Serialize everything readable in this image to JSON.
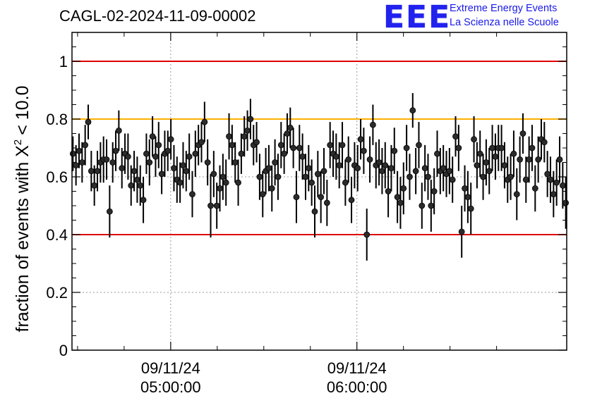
{
  "header": {
    "title": "CAGL-02-2024-11-09-00002",
    "logo_mark": "EEE",
    "logo_line1": "Extreme Energy Events",
    "logo_line2": "La Scienza nelle Scuole"
  },
  "chart_data": {
    "type": "scatter",
    "title": "CAGL-02-2024-11-09-00002",
    "ylabel": "fraction of events with χ² < 10.0",
    "ylabel_main": "fraction of events with X",
    "ylabel_sup": "2",
    "ylabel_tail": "< 10.0",
    "xlabel": "",
    "ylim": [
      0,
      1.1
    ],
    "yticks": [
      0,
      0.2,
      0.4,
      0.6,
      0.8,
      1
    ],
    "ytick_labels": [
      "0",
      "0.2",
      "0.4",
      "0.6",
      "0.8",
      "1"
    ],
    "xlim_minutes": [
      268.2,
      427.6
    ],
    "xticks": [
      {
        "minutes": 300,
        "date": "09/11/24",
        "time": "05:00:00"
      },
      {
        "minutes": 360,
        "date": "09/11/24",
        "time": "06:00:00"
      }
    ],
    "grid": true,
    "reference_lines": [
      {
        "y": 1.0,
        "color": "#dd0000"
      },
      {
        "y": 0.8,
        "color": "#ffb000"
      },
      {
        "y": 0.4,
        "color": "#dd0000"
      }
    ],
    "series": [
      {
        "marker_color": "#000000",
        "y": [
          0.68,
          0.64,
          0.69,
          0.65,
          0.71,
          0.79,
          0.62,
          0.57,
          0.62,
          0.65,
          0.66,
          0.66,
          0.48,
          0.65,
          0.69,
          0.76,
          0.63,
          0.68,
          0.67,
          0.57,
          0.62,
          0.59,
          0.57,
          0.52,
          0.68,
          0.65,
          0.74,
          0.67,
          0.71,
          0.61,
          0.68,
          0.69,
          0.73,
          0.63,
          0.59,
          0.58,
          0.64,
          0.62,
          0.67,
          0.54,
          0.68,
          0.71,
          0.72,
          0.79,
          0.65,
          0.5,
          0.61,
          0.5,
          0.56,
          0.6,
          0.58,
          0.74,
          0.71,
          0.65,
          0.58,
          0.68,
          0.74,
          0.76,
          0.8,
          0.71,
          0.72,
          0.6,
          0.54,
          0.62,
          0.63,
          0.56,
          0.65,
          0.6,
          0.71,
          0.68,
          0.75,
          0.77,
          0.7,
          0.53,
          0.7,
          0.67,
          0.6,
          0.63,
          0.58,
          0.48,
          0.61,
          0.53,
          0.62,
          0.51,
          0.71,
          0.68,
          0.67,
          0.64,
          0.71,
          0.58,
          0.66,
          0.52,
          0.64,
          0.63,
          0.73,
          0.69,
          0.4,
          0.66,
          0.78,
          0.64,
          0.65,
          0.62,
          0.64,
          0.55,
          0.63,
          0.69,
          0.53,
          0.51,
          0.56,
          0.7,
          0.6,
          0.83,
          0.62,
          0.71,
          0.5,
          0.63,
          0.6,
          0.5,
          0.55,
          0.68,
          0.62,
          0.63,
          0.61,
          0.62,
          0.59,
          0.74,
          0.7,
          0.41,
          0.56,
          0.53,
          0.49,
          0.73,
          0.64,
          0.68,
          0.6,
          0.65,
          0.62,
          0.7,
          0.67,
          0.7,
          0.7,
          0.64,
          0.59,
          0.6,
          0.68,
          0.54,
          0.66,
          0.75,
          0.59,
          0.66,
          0.7,
          0.56,
          0.66,
          0.73,
          0.72,
          0.61,
          0.59,
          0.54,
          0.58,
          0.66,
          0.57,
          0.51
        ],
        "err": [
          0.06,
          0.07,
          0.06,
          0.07,
          0.07,
          0.06,
          0.07,
          0.07,
          0.07,
          0.07,
          0.08,
          0.07,
          0.09,
          0.07,
          0.07,
          0.07,
          0.07,
          0.07,
          0.08,
          0.07,
          0.07,
          0.08,
          0.07,
          0.08,
          0.07,
          0.08,
          0.07,
          0.07,
          0.08,
          0.07,
          0.08,
          0.07,
          0.07,
          0.08,
          0.08,
          0.07,
          0.08,
          0.07,
          0.08,
          0.08,
          0.08,
          0.07,
          0.07,
          0.07,
          0.08,
          0.11,
          0.08,
          0.08,
          0.08,
          0.08,
          0.08,
          0.08,
          0.07,
          0.07,
          0.08,
          0.07,
          0.07,
          0.07,
          0.07,
          0.07,
          0.07,
          0.08,
          0.08,
          0.08,
          0.08,
          0.08,
          0.08,
          0.08,
          0.08,
          0.07,
          0.07,
          0.07,
          0.07,
          0.09,
          0.08,
          0.08,
          0.08,
          0.08,
          0.08,
          0.09,
          0.08,
          0.09,
          0.08,
          0.08,
          0.08,
          0.08,
          0.08,
          0.08,
          0.08,
          0.08,
          0.08,
          0.08,
          0.08,
          0.08,
          0.07,
          0.08,
          0.09,
          0.08,
          0.07,
          0.08,
          0.08,
          0.08,
          0.08,
          0.09,
          0.08,
          0.08,
          0.09,
          0.09,
          0.09,
          0.08,
          0.08,
          0.06,
          0.08,
          0.08,
          0.08,
          0.08,
          0.08,
          0.09,
          0.08,
          0.08,
          0.08,
          0.08,
          0.08,
          0.08,
          0.08,
          0.07,
          0.08,
          0.09,
          0.08,
          0.09,
          0.09,
          0.08,
          0.08,
          0.08,
          0.08,
          0.08,
          0.08,
          0.08,
          0.08,
          0.08,
          0.08,
          0.08,
          0.08,
          0.08,
          0.08,
          0.09,
          0.08,
          0.07,
          0.08,
          0.08,
          0.08,
          0.08,
          0.08,
          0.07,
          0.07,
          0.08,
          0.08,
          0.08,
          0.08,
          0.08,
          0.08,
          0.09
        ]
      }
    ]
  }
}
